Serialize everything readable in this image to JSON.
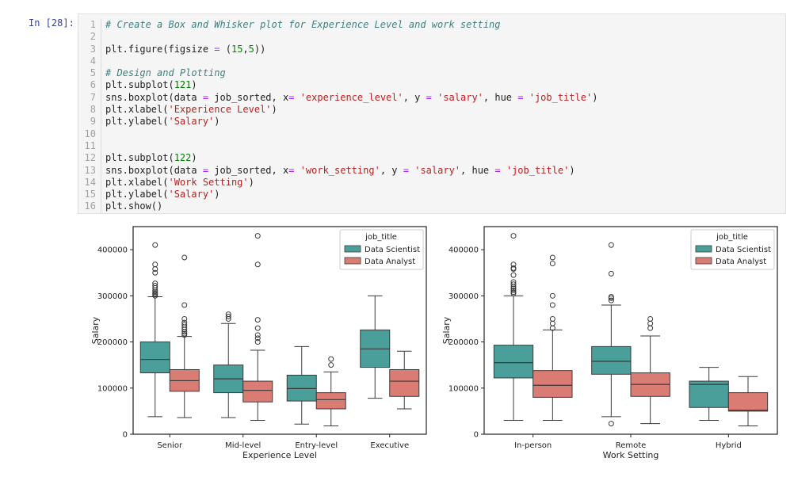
{
  "prompt": "In [28]:",
  "code_lines": [
    [
      {
        "t": "# Create a Box and Whisker plot for Experience Level and work setting",
        "c": "c"
      }
    ],
    [],
    [
      {
        "t": "plt.figure(figsize ",
        "c": "t"
      },
      {
        "t": "=",
        "c": "o"
      },
      {
        "t": " (",
        "c": "t"
      },
      {
        "t": "15",
        "c": "n"
      },
      {
        "t": ",",
        "c": "t"
      },
      {
        "t": "5",
        "c": "n"
      },
      {
        "t": "))",
        "c": "t"
      }
    ],
    [],
    [
      {
        "t": "# Design and Plotting",
        "c": "c"
      }
    ],
    [
      {
        "t": "plt.subplot(",
        "c": "t"
      },
      {
        "t": "121",
        "c": "n"
      },
      {
        "t": ")",
        "c": "t"
      }
    ],
    [
      {
        "t": "sns.boxplot(data ",
        "c": "t"
      },
      {
        "t": "=",
        "c": "o"
      },
      {
        "t": " job_sorted, x",
        "c": "t"
      },
      {
        "t": "=",
        "c": "o"
      },
      {
        "t": " ",
        "c": "t"
      },
      {
        "t": "'experience_level'",
        "c": "s"
      },
      {
        "t": ", y ",
        "c": "t"
      },
      {
        "t": "=",
        "c": "o"
      },
      {
        "t": " ",
        "c": "t"
      },
      {
        "t": "'salary'",
        "c": "s"
      },
      {
        "t": ", hue ",
        "c": "t"
      },
      {
        "t": "=",
        "c": "o"
      },
      {
        "t": " ",
        "c": "t"
      },
      {
        "t": "'job_title'",
        "c": "s"
      },
      {
        "t": ")",
        "c": "t"
      }
    ],
    [
      {
        "t": "plt.xlabel(",
        "c": "t"
      },
      {
        "t": "'Experience Level'",
        "c": "s"
      },
      {
        "t": ")",
        "c": "t"
      }
    ],
    [
      {
        "t": "plt.ylabel(",
        "c": "t"
      },
      {
        "t": "'Salary'",
        "c": "s"
      },
      {
        "t": ")",
        "c": "t"
      }
    ],
    [],
    [],
    [
      {
        "t": "plt.subplot(",
        "c": "t"
      },
      {
        "t": "122",
        "c": "n"
      },
      {
        "t": ")",
        "c": "t"
      }
    ],
    [
      {
        "t": "sns.boxplot(data ",
        "c": "t"
      },
      {
        "t": "=",
        "c": "o"
      },
      {
        "t": " job_sorted, x",
        "c": "t"
      },
      {
        "t": "=",
        "c": "o"
      },
      {
        "t": " ",
        "c": "t"
      },
      {
        "t": "'work_setting'",
        "c": "s"
      },
      {
        "t": ", y ",
        "c": "t"
      },
      {
        "t": "=",
        "c": "o"
      },
      {
        "t": " ",
        "c": "t"
      },
      {
        "t": "'salary'",
        "c": "s"
      },
      {
        "t": ", hue ",
        "c": "t"
      },
      {
        "t": "=",
        "c": "o"
      },
      {
        "t": " ",
        "c": "t"
      },
      {
        "t": "'job_title'",
        "c": "s"
      },
      {
        "t": ")",
        "c": "t"
      }
    ],
    [
      {
        "t": "plt.xlabel(",
        "c": "t"
      },
      {
        "t": "'Work Setting'",
        "c": "s"
      },
      {
        "t": ")",
        "c": "t"
      }
    ],
    [
      {
        "t": "plt.ylabel(",
        "c": "t"
      },
      {
        "t": "'Salary'",
        "c": "s"
      },
      {
        "t": ")",
        "c": "t"
      }
    ],
    [
      {
        "t": "plt.show()",
        "c": "t"
      }
    ]
  ],
  "colors": {
    "scientist": "#4a9f9a",
    "analyst": "#da7c74"
  },
  "chart_data": [
    {
      "type": "box",
      "xlabel": "Experience Level",
      "ylabel": "Salary",
      "ylim": [
        0,
        450000
      ],
      "yticks": [
        0,
        100000,
        200000,
        300000,
        400000
      ],
      "legend_title": "job_title",
      "legend_position": "top-right",
      "series_names": [
        "Data Scientist",
        "Data Analyst"
      ],
      "categories": [
        "Senior",
        "Mid-level",
        "Entry-level",
        "Executive"
      ],
      "boxes": [
        [
          {
            "wl": 38000,
            "q1": 133000,
            "med": 162000,
            "q3": 200000,
            "wh": 298000,
            "out": [
              300000,
              303000,
              305000,
              308000,
              312000,
              317000,
              322000,
              327000,
              350000,
              358000,
              368000,
              410000
            ]
          },
          {
            "wl": 36000,
            "q1": 93000,
            "med": 116000,
            "q3": 140000,
            "wh": 212000,
            "out": [
              215000,
              218000,
              222000,
              227000,
              232000,
              237000,
              242000,
              250000,
              280000,
              383000
            ]
          }
        ],
        [
          {
            "wl": 36000,
            "q1": 90000,
            "med": 120000,
            "q3": 150000,
            "wh": 240000,
            "out": [
              250000,
              255000,
              260000
            ]
          },
          {
            "wl": 30000,
            "q1": 70000,
            "med": 95000,
            "q3": 115000,
            "wh": 182000,
            "out": [
              200000,
              208000,
              215000,
              230000,
              248000,
              368000,
              430000
            ]
          }
        ],
        [
          {
            "wl": 22000,
            "q1": 72000,
            "med": 99000,
            "q3": 128000,
            "wh": 190000,
            "out": []
          },
          {
            "wl": 18000,
            "q1": 55000,
            "med": 75000,
            "q3": 90000,
            "wh": 135000,
            "out": [
              150000,
              163000
            ]
          }
        ],
        [
          {
            "wl": 78000,
            "q1": 145000,
            "med": 185000,
            "q3": 226000,
            "wh": 300000,
            "out": []
          },
          {
            "wl": 55000,
            "q1": 82000,
            "med": 115000,
            "q3": 140000,
            "wh": 180000,
            "out": []
          }
        ]
      ]
    },
    {
      "type": "box",
      "xlabel": "Work Setting",
      "ylabel": "Salary",
      "ylim": [
        0,
        450000
      ],
      "yticks": [
        0,
        100000,
        200000,
        300000,
        400000
      ],
      "legend_title": "job_title",
      "legend_position": "top-right",
      "series_names": [
        "Data Scientist",
        "Data Analyst"
      ],
      "categories": [
        "In-person",
        "Remote",
        "Hybrid"
      ],
      "boxes": [
        [
          {
            "wl": 30000,
            "q1": 122000,
            "med": 155000,
            "q3": 193000,
            "wh": 300000,
            "out": [
              305000,
              308000,
              312000,
              316000,
              320000,
              325000,
              330000,
              345000,
              358000,
              360000,
              368000,
              430000
            ]
          },
          {
            "wl": 30000,
            "q1": 80000,
            "med": 106000,
            "q3": 138000,
            "wh": 226000,
            "out": [
              230000,
              240000,
              250000,
              280000,
              300000,
              370000,
              383000
            ]
          }
        ],
        [
          {
            "wl": 38000,
            "q1": 130000,
            "med": 158000,
            "q3": 190000,
            "wh": 280000,
            "out": [
              23000,
              290000,
              295000,
              298000,
              348000,
              410000
            ]
          },
          {
            "wl": 23000,
            "q1": 82000,
            "med": 108000,
            "q3": 133000,
            "wh": 213000,
            "out": [
              230000,
              240000,
              250000
            ]
          }
        ],
        [
          {
            "wl": 30000,
            "q1": 58000,
            "med": 108000,
            "q3": 115000,
            "wh": 145000,
            "out": []
          },
          {
            "wl": 18000,
            "q1": 50000,
            "med": 52000,
            "q3": 90000,
            "wh": 125000,
            "out": []
          }
        ]
      ]
    }
  ]
}
